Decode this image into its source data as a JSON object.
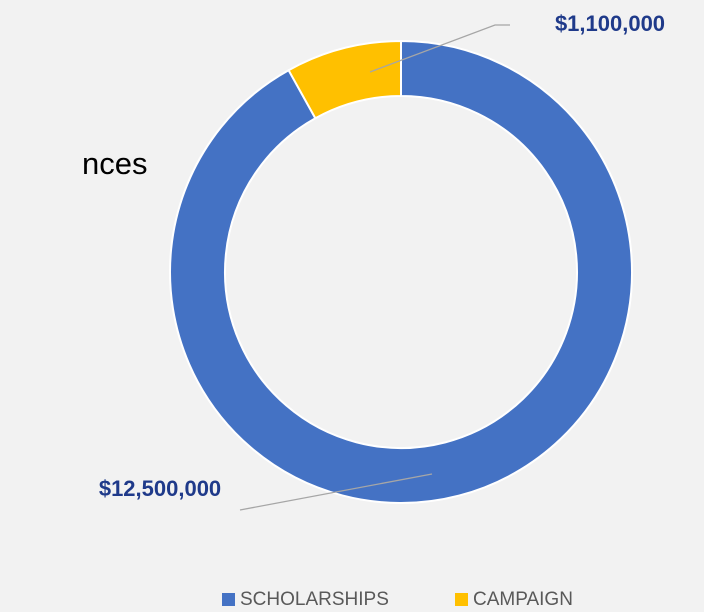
{
  "page_text": "nces",
  "chart_data": {
    "type": "donut",
    "categories": [
      "SCHOLARSHIPS",
      "CAMPAIGN"
    ],
    "values": [
      12500000,
      1100000
    ],
    "value_labels": [
      "$12,500,000",
      "$1,100,000"
    ],
    "colors": [
      "#4472c4",
      "#ffc000"
    ],
    "legend": "bottom"
  }
}
